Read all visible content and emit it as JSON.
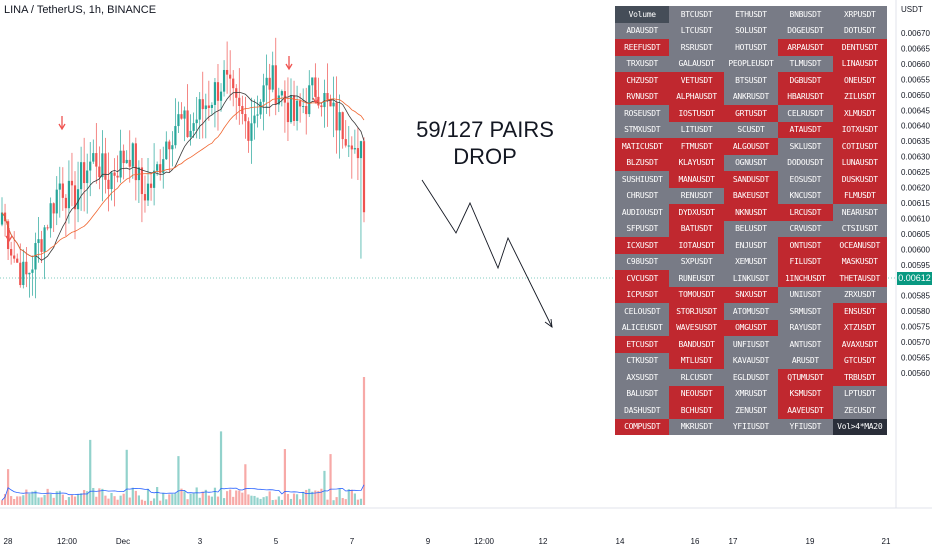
{
  "title": "LINA / TetherUS, 1h, BINANCE",
  "annotation": [
    "59/127 PAIRS",
    "DROP"
  ],
  "current_price_label": "0.00612",
  "colors": {
    "up": "#26a69a",
    "down": "#ef5350",
    "ma_fast": "#3a3a3a",
    "ma_slow": "#f0652f",
    "vol_ma": "#2962ff",
    "cell_grey": "#787b86",
    "cell_red": "#c0282f",
    "price_tag": "#089981"
  },
  "chart_data": {
    "type": "candlestick",
    "title": "LINA / TetherUS, 1h, BINANCE",
    "y_axis_unit": "USDT",
    "ylim": [
      0.00557,
      0.00677
    ],
    "y_ticks": [
      "0.00670",
      "0.00665",
      "0.00660",
      "0.00655",
      "0.00650",
      "0.00645",
      "0.00640",
      "0.00635",
      "0.00630",
      "0.00625",
      "0.00620",
      "0.00615",
      "0.00610",
      "0.00605",
      "0.00600",
      "0.00595",
      "0.00590",
      "0.00585",
      "0.00580",
      "0.00575",
      "0.00570",
      "0.00565",
      "0.00560"
    ],
    "x_ticks": [
      "28",
      "12:00",
      "Dec",
      "3",
      "5",
      "7",
      "9",
      "12:00",
      "12",
      "14",
      "16",
      "17",
      "19",
      "21"
    ],
    "close_path": [
      0.00612,
      0.00598,
      0.0059,
      0.006,
      0.00611,
      0.00622,
      0.00615,
      0.00625,
      0.0063,
      0.00622,
      0.00628,
      0.00632,
      0.00618,
      0.00622,
      0.00635,
      0.00642,
      0.00638,
      0.00645,
      0.0065,
      0.00655,
      0.00645,
      0.0064,
      0.00648,
      0.00655,
      0.0065,
      0.00642,
      0.00648,
      0.00653,
      0.00645,
      0.0064,
      0.00638,
      0.00612
    ],
    "markers": [
      "down-arrow",
      "down-arrow",
      "down-arrow",
      "down-arrow"
    ]
  },
  "table": {
    "rows": [
      [
        "Volume",
        "BTCUSDT",
        "ETHUSDT",
        "BNBUSDT",
        "XRPUSDT"
      ],
      [
        "ADAUSDT",
        "LTCUSDT",
        "SOLUSDT",
        "DOGEUSDT",
        "DOTUSDT"
      ],
      [
        "REEFUSDT",
        "RSRUSDT",
        "HOTUSDT",
        "ARPAUSDT",
        "DENTUSDT"
      ],
      [
        "TRXUSDT",
        "GALAUSDT",
        "PEOPLEUSDT",
        "TLMUSDT",
        "LINAUSDT"
      ],
      [
        "CHZUSDT",
        "VETUSDT",
        "BTSUSDT",
        "DGBUSDT",
        "ONEUSDT"
      ],
      [
        "RVNUSDT",
        "ALPHAUSDT",
        "ANKRUSDT",
        "HBARUSDT",
        "ZILUSDT"
      ],
      [
        "ROSEUSDT",
        "IOSTUSDT",
        "GRTUSDT",
        "CELRUSDT",
        "XLMUSDT"
      ],
      [
        "STMXUSDT",
        "LITUSDT",
        "SCUSDT",
        "ATAUSDT",
        "IOTXUSDT"
      ],
      [
        "MATICUSDT",
        "FTMUSDT",
        "ALGOUSDT",
        "SKLUSDT",
        "COTIUSDT"
      ],
      [
        "BLZUSDT",
        "KLAYUSDT",
        "OGNUSDT",
        "DODOUSDT",
        "LUNAUSDT"
      ],
      [
        "SUSHIUSDT",
        "MANAUSDT",
        "SANDUSDT",
        "EOSUSDT",
        "DUSKUSDT"
      ],
      [
        "CHRUSDT",
        "RENUSDT",
        "BAKEUSDT",
        "KNCUSDT",
        "FLMUSDT"
      ],
      [
        "AUDIOUSDT",
        "DYDXUSDT",
        "NKNUSDT",
        "LRCUSDT",
        "NEARUSDT"
      ],
      [
        "SFPUSDT",
        "BATUSDT",
        "BELUSDT",
        "CRVUSDT",
        "CTSIUSDT"
      ],
      [
        "ICXUSDT",
        "IOTAUSDT",
        "ENJUSDT",
        "ONTUSDT",
        "OCEANUSDT"
      ],
      [
        "C98USDT",
        "SXPUSDT",
        "XEMUSDT",
        "FILUSDT",
        "MASKUSDT"
      ],
      [
        "CVCUSDT",
        "RUNEUSDT",
        "LINKUSDT",
        "1INCHUSDT",
        "THETAUSDT"
      ],
      [
        "ICPUSDT",
        "TOMOUSDT",
        "SNXUSDT",
        "UNIUSDT",
        "ZRXUSDT"
      ],
      [
        "CELOUSDT",
        "STORJUSDT",
        "ATOMUSDT",
        "SRMUSDT",
        "ENSUSDT"
      ],
      [
        "ALICEUSDT",
        "WAVESUSDT",
        "OMGUSDT",
        "RAYUSDT",
        "XTZUSDT"
      ],
      [
        "ETCUSDT",
        "BANDUSDT",
        "UNFIUSDT",
        "ANTUSDT",
        "AVAXUSDT"
      ],
      [
        "CTKUSDT",
        "MTLUSDT",
        "KAVAUSDT",
        "ARUSDT",
        "GTCUSDT"
      ],
      [
        "AXSUSDT",
        "RLCUSDT",
        "EGLDUSDT",
        "QTUMUSDT",
        "TRBUSDT"
      ],
      [
        "BALUSDT",
        "NEOUSDT",
        "XMRUSDT",
        "KSMUSDT",
        "LPTUSDT"
      ],
      [
        "DASHUSDT",
        "BCHUSDT",
        "ZENUSDT",
        "AAVEUSDT",
        "ZECUSDT"
      ],
      [
        "COMPUSDT",
        "MKRUSDT",
        "YFIIUSDT",
        "YFIUSDT",
        "Vol>4*MA20"
      ]
    ],
    "colors": [
      [
        "h",
        "g",
        "g",
        "g",
        "g"
      ],
      [
        "g",
        "g",
        "g",
        "g",
        "g"
      ],
      [
        "r",
        "g",
        "g",
        "r",
        "r"
      ],
      [
        "g",
        "g",
        "g",
        "g",
        "r"
      ],
      [
        "r",
        "r",
        "g",
        "r",
        "r"
      ],
      [
        "r",
        "r",
        "g",
        "r",
        "r"
      ],
      [
        "g",
        "r",
        "r",
        "g",
        "r"
      ],
      [
        "g",
        "g",
        "g",
        "r",
        "r"
      ],
      [
        "r",
        "r",
        "r",
        "g",
        "r"
      ],
      [
        "r",
        "r",
        "g",
        "g",
        "r"
      ],
      [
        "g",
        "r",
        "r",
        "g",
        "r"
      ],
      [
        "g",
        "g",
        "r",
        "g",
        "r"
      ],
      [
        "g",
        "r",
        "r",
        "r",
        "g"
      ],
      [
        "g",
        "r",
        "g",
        "g",
        "g"
      ],
      [
        "r",
        "r",
        "g",
        "r",
        "r"
      ],
      [
        "g",
        "g",
        "g",
        "r",
        "r"
      ],
      [
        "r",
        "g",
        "g",
        "r",
        "r"
      ],
      [
        "r",
        "r",
        "r",
        "g",
        "g"
      ],
      [
        "g",
        "r",
        "g",
        "g",
        "r"
      ],
      [
        "g",
        "r",
        "r",
        "g",
        "r"
      ],
      [
        "r",
        "r",
        "g",
        "g",
        "r"
      ],
      [
        "g",
        "r",
        "g",
        "g",
        "r"
      ],
      [
        "g",
        "g",
        "g",
        "r",
        "r"
      ],
      [
        "g",
        "r",
        "g",
        "r",
        "g"
      ],
      [
        "g",
        "r",
        "g",
        "r",
        "g"
      ],
      [
        "r",
        "g",
        "g",
        "g",
        "d"
      ]
    ]
  }
}
